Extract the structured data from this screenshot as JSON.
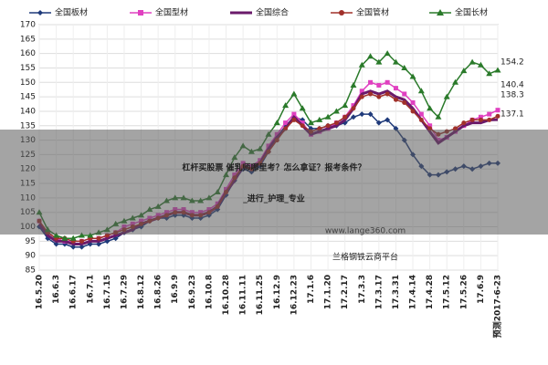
{
  "chart_data": {
    "type": "line",
    "categories": [
      "16.5.20",
      null,
      "16.6.3",
      null,
      "16.6.17",
      null,
      "16.7.1",
      null,
      "16.7.15",
      null,
      "16.7.29",
      null,
      "16.8.12",
      null,
      "16.8.26",
      null,
      "16.9.9",
      null,
      "16.9.23",
      null,
      "16.10.8",
      null,
      "16.10.28",
      null,
      "16.11.11",
      null,
      "16.11.25",
      null,
      "16.12.9",
      null,
      "16.12.23",
      null,
      "17.1.6",
      null,
      "17.1.20",
      null,
      "17.2.17",
      null,
      "17.3.3",
      null,
      "17.3.17",
      null,
      "17.3.31",
      null,
      "17.4.14",
      null,
      "17.4.28",
      null,
      "17.5.12",
      null,
      "17.5.26",
      null,
      "17.6.9",
      null,
      "预测2017-6-23"
    ],
    "series": [
      {
        "name": "全国板材",
        "color": "#1f3a7a",
        "marker": "diamond",
        "values": [
          100,
          96,
          94,
          94,
          93,
          93,
          94,
          94,
          95,
          96,
          98,
          99,
          100,
          102,
          103,
          103,
          104,
          104,
          103,
          103,
          104,
          106,
          111,
          116,
          120,
          119,
          121,
          126,
          131,
          135,
          138,
          137,
          134,
          134,
          135,
          135,
          136,
          138,
          139,
          139,
          136,
          137,
          134,
          130,
          125,
          121,
          118,
          118,
          119,
          120,
          121,
          120,
          121,
          122,
          122
        ]
      },
      {
        "name": "全国型材",
        "color": "#e040c0",
        "marker": "square",
        "values": [
          102,
          98,
          96,
          95,
          95,
          95,
          96,
          96,
          97,
          98,
          100,
          101,
          102,
          103,
          104,
          105,
          106,
          106,
          105,
          105,
          106,
          108,
          113,
          118,
          122,
          121,
          123,
          128,
          132,
          136,
          139,
          136,
          132,
          133,
          134,
          136,
          138,
          142,
          147,
          150,
          149,
          150,
          148,
          146,
          143,
          139,
          135,
          130,
          131,
          133,
          135,
          137,
          138,
          139,
          140.4
        ]
      },
      {
        "name": "全国综合",
        "color": "#6a1a6a",
        "marker": "none",
        "values": [
          101,
          97,
          95,
          95,
          94,
          94,
          95,
          95,
          96,
          97,
          98,
          99,
          101,
          102,
          103,
          104,
          105,
          105,
          104,
          104,
          105,
          107,
          112,
          116,
          121,
          120,
          122,
          127,
          131,
          134,
          138,
          135,
          132,
          133,
          134,
          135,
          137,
          141,
          146,
          147,
          146,
          147,
          145,
          144,
          141,
          137,
          133,
          129,
          131,
          133,
          135,
          136,
          136,
          137,
          137.1
        ]
      },
      {
        "name": "全国管材",
        "color": "#a0302a",
        "marker": "circle",
        "values": [
          102,
          98,
          96,
          96,
          95,
          95,
          96,
          96,
          97,
          98,
          99,
          100,
          101,
          102,
          103,
          104,
          105,
          105,
          104,
          104,
          105,
          107,
          112,
          117,
          121,
          120,
          122,
          126,
          130,
          134,
          137,
          135,
          133,
          134,
          135,
          136,
          138,
          141,
          145,
          146,
          145,
          146,
          144,
          143,
          140,
          137,
          134,
          132,
          133,
          134,
          136,
          137,
          137,
          137,
          138.3
        ]
      },
      {
        "name": "全国长材",
        "color": "#2a7a2a",
        "marker": "triangle",
        "values": [
          105,
          99,
          97,
          96,
          96,
          97,
          97,
          98,
          99,
          101,
          102,
          103,
          104,
          106,
          107,
          109,
          110,
          110,
          109,
          109,
          110,
          112,
          118,
          124,
          128,
          126,
          127,
          132,
          136,
          142,
          146,
          141,
          136,
          137,
          138,
          140,
          142,
          149,
          156,
          159,
          157,
          160,
          157,
          155,
          152,
          147,
          141,
          138,
          145,
          150,
          154,
          157,
          156,
          153,
          154.2
        ]
      }
    ],
    "ylim": [
      85,
      170
    ],
    "yticks": [
      85,
      90,
      95,
      100,
      105,
      110,
      115,
      120,
      125,
      130,
      135,
      140,
      145,
      150,
      155,
      160,
      165,
      170
    ],
    "grid": true,
    "legend": "top",
    "watermarks": [
      "www.lange360.com",
      "兰格钢铁云商平台"
    ]
  },
  "overlay": {
    "lines": [
      "杠杆买股票 催乳师哪里考？怎么拿证？报考条件？",
      "_进行_护理_专业"
    ]
  }
}
